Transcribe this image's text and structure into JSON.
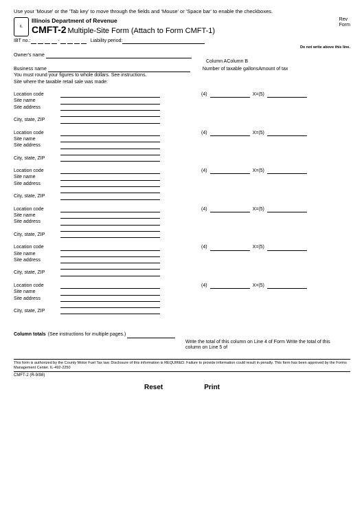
{
  "instruction": "Use your 'Mouse' or the 'Tab key' to move through the fields and 'Mouse' or 'Space bar' to enable the checkboxes.",
  "dept": "Illinois Department of Revenue",
  "form_code": "CMFT-2",
  "form_title": "Multiple-Site Form (Attach to Form CMFT-1)",
  "rev": "Rev",
  "rev2": "Form",
  "ibt_label": "IBT no.:",
  "liability_label": "Liability period:",
  "no_write": "Do not write above this line.",
  "owner_label": "Owner's name",
  "colA": "Column A",
  "colB": "Column B",
  "colA_sub": "Number of taxable gallons",
  "colB_sub": "Amount of tax",
  "business_label": "Business name",
  "round_note": "You must round your figures to whole dollars. See instructions.",
  "site_intro": "Site where the taxable retail sale was made:",
  "loc_code": "Location code",
  "site_name": "Site name",
  "site_addr": "Site address",
  "csz": "City, state, ZIP",
  "calc_4": "(4)",
  "calc_x": "X=(5)",
  "col_totals": "Column totals",
  "col_totals_note": "(See instructions for multiple pages.)",
  "write_note": "Write the total of this column on Line 4 of Form",
  "write_note2": "Write the total of this column on Line 5 of",
  "auth": "This form is authorized by the County Motor Fuel Tax law. Disclosure of this information is REQUIRED. Failure to provide information could result in penalty. This form has been approved by the Forms Management Center.        IL-492-2250",
  "form_rev": "CMFT-2 (R-9/98)",
  "reset": "Reset",
  "print": "Print"
}
